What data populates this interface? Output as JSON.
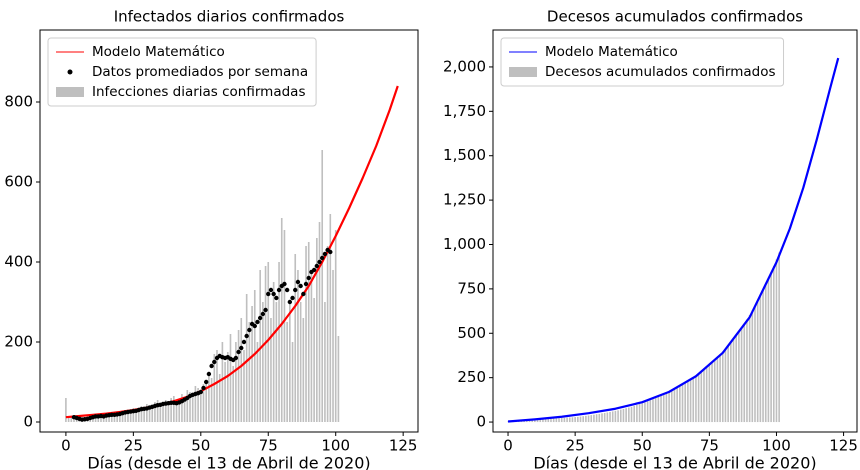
{
  "chart_data": [
    {
      "type": "combo",
      "title": "Infectados diarios confirmados",
      "xlabel": "Días (desde el 13 de Abril de 2020)",
      "xlim": [
        -9.6,
        130.5
      ],
      "ylim": [
        -25,
        980
      ],
      "xticks": [
        0,
        25,
        50,
        75,
        100,
        125
      ],
      "yticks": [
        0,
        200,
        400,
        600,
        800
      ],
      "legend": "upper left",
      "series": [
        {
          "name": "Infecciones diarias confirmadas",
          "color": "#bfbfbf",
          "kind": "bar",
          "x": [
            0,
            1,
            2,
            3,
            4,
            5,
            6,
            7,
            8,
            9,
            10,
            11,
            12,
            13,
            14,
            15,
            16,
            17,
            18,
            19,
            20,
            21,
            22,
            23,
            24,
            25,
            26,
            27,
            28,
            29,
            30,
            31,
            32,
            33,
            34,
            35,
            36,
            37,
            38,
            39,
            40,
            41,
            42,
            43,
            44,
            45,
            46,
            47,
            48,
            49,
            50,
            51,
            52,
            53,
            54,
            55,
            56,
            57,
            58,
            59,
            60,
            61,
            62,
            63,
            64,
            65,
            66,
            67,
            68,
            69,
            70,
            71,
            72,
            73,
            74,
            75,
            76,
            77,
            78,
            79,
            80,
            81,
            82,
            83,
            84,
            85,
            86,
            87,
            88,
            89,
            90,
            91,
            92,
            93,
            94,
            95,
            96,
            97,
            98,
            99,
            100,
            101
          ],
          "values": [
            60,
            10,
            15,
            12,
            5,
            8,
            5,
            10,
            12,
            15,
            20,
            15,
            18,
            10,
            22,
            18,
            20,
            25,
            15,
            22,
            25,
            20,
            30,
            25,
            28,
            35,
            30,
            32,
            40,
            35,
            45,
            40,
            38,
            50,
            55,
            45,
            48,
            55,
            50,
            60,
            65,
            45,
            55,
            70,
            60,
            80,
            75,
            70,
            90,
            85,
            80,
            95,
            100,
            120,
            110,
            170,
            180,
            120,
            200,
            150,
            175,
            220,
            140,
            200,
            230,
            260,
            180,
            320,
            250,
            290,
            330,
            200,
            380,
            300,
            390,
            400,
            260,
            350,
            300,
            400,
            510,
            480,
            250,
            300,
            200,
            420,
            380,
            300,
            260,
            440,
            450,
            380,
            310,
            460,
            500,
            680,
            300,
            440,
            520,
            380,
            480,
            215
          ]
        },
        {
          "name": "Modelo Matemático",
          "color": "#ff0000",
          "kind": "line",
          "x": [
            0,
            5,
            10,
            15,
            20,
            25,
            30,
            35,
            40,
            45,
            50,
            55,
            60,
            65,
            70,
            75,
            80,
            85,
            90,
            95,
            100,
            105,
            110,
            115,
            120,
            123
          ],
          "values": [
            12,
            15,
            18,
            21,
            25,
            30,
            36,
            43,
            52,
            63,
            77,
            95,
            115,
            140,
            170,
            205,
            245,
            290,
            340,
            400,
            465,
            535,
            610,
            690,
            780,
            840
          ]
        },
        {
          "name": "Datos promediados por semana",
          "color": "#000000",
          "kind": "scatter",
          "x": [
            3,
            4,
            5,
            6,
            7,
            8,
            9,
            10,
            11,
            12,
            13,
            14,
            15,
            16,
            17,
            18,
            19,
            20,
            21,
            22,
            23,
            24,
            25,
            26,
            27,
            28,
            29,
            30,
            31,
            32,
            33,
            34,
            35,
            36,
            37,
            38,
            39,
            40,
            41,
            42,
            43,
            44,
            45,
            46,
            47,
            48,
            49,
            50,
            51,
            52,
            53,
            54,
            55,
            56,
            57,
            58,
            59,
            60,
            61,
            62,
            63,
            64,
            65,
            66,
            67,
            68,
            69,
            70,
            71,
            72,
            73,
            74,
            75,
            76,
            77,
            78,
            79,
            80,
            81,
            82,
            83,
            84,
            85,
            86,
            87,
            88,
            89,
            90,
            91,
            92,
            93,
            94,
            95,
            96,
            97,
            98
          ],
          "values": [
            12,
            10,
            8,
            6,
            7,
            8,
            10,
            12,
            14,
            14,
            15,
            14,
            16,
            17,
            18,
            18,
            19,
            20,
            22,
            24,
            25,
            26,
            27,
            28,
            30,
            32,
            33,
            34,
            36,
            38,
            40,
            42,
            43,
            45,
            46,
            47,
            48,
            48,
            47,
            49,
            52,
            56,
            60,
            65,
            68,
            70,
            72,
            75,
            85,
            100,
            120,
            140,
            150,
            160,
            165,
            162,
            160,
            162,
            158,
            155,
            160,
            175,
            185,
            200,
            215,
            230,
            245,
            240,
            250,
            260,
            270,
            280,
            320,
            330,
            320,
            310,
            330,
            340,
            345,
            330,
            300,
            310,
            330,
            350,
            340,
            320,
            345,
            360,
            375,
            380,
            390,
            400,
            410,
            420,
            430,
            425
          ]
        }
      ]
    },
    {
      "type": "combo",
      "title": "Decesos acumulados confirmados",
      "xlabel": "Días (desde el 13 de Abril de 2020)",
      "xlim": [
        -5.6,
        130
      ],
      "ylim": [
        -56,
        2208
      ],
      "xticks": [
        0,
        25,
        50,
        75,
        100,
        125
      ],
      "yticks": [
        0,
        250,
        500,
        750,
        {
          "value": 1000,
          "label": "1,000"
        },
        {
          "value": 1250,
          "label": "1,250"
        },
        {
          "value": 1500,
          "label": "1,500"
        },
        {
          "value": 1750,
          "label": "1,750"
        },
        {
          "value": 2000,
          "label": "2,000"
        }
      ],
      "legend": "upper left",
      "series": [
        {
          "name": "Decesos acumulados confirmados",
          "color": "#bfbfbf",
          "kind": "bar",
          "x": [
            0,
            1,
            2,
            3,
            4,
            5,
            6,
            7,
            8,
            9,
            10,
            11,
            12,
            13,
            14,
            15,
            16,
            17,
            18,
            19,
            20,
            21,
            22,
            23,
            24,
            25,
            26,
            27,
            28,
            29,
            30,
            31,
            32,
            33,
            34,
            35,
            36,
            37,
            38,
            39,
            40,
            41,
            42,
            43,
            44,
            45,
            46,
            47,
            48,
            49,
            50,
            51,
            52,
            53,
            54,
            55,
            56,
            57,
            58,
            59,
            60,
            61,
            62,
            63,
            64,
            65,
            66,
            67,
            68,
            69,
            70,
            71,
            72,
            73,
            74,
            75,
            76,
            77,
            78,
            79,
            80,
            81,
            82,
            83,
            84,
            85,
            86,
            87,
            88,
            89,
            90,
            91,
            92,
            93,
            94,
            95,
            96,
            97,
            98,
            99,
            100,
            101
          ],
          "values": [
            3,
            4,
            5,
            6,
            7,
            8,
            9,
            10,
            11,
            12,
            13,
            14,
            15,
            16,
            17,
            18,
            19,
            20,
            21,
            22,
            23,
            24,
            25,
            26,
            27,
            28,
            29,
            31,
            33,
            35,
            37,
            39,
            41,
            44,
            46,
            49,
            51,
            54,
            57,
            60,
            63,
            66,
            70,
            74,
            78,
            82,
            86,
            91,
            96,
            101,
            106,
            111,
            117,
            123,
            129,
            136,
            142,
            149,
            156,
            163,
            170,
            178,
            186,
            194,
            203,
            212,
            221,
            230,
            240,
            250,
            261,
            272,
            284,
            296,
            309,
            322,
            336,
            350,
            365,
            381,
            397,
            414,
            432,
            450,
            469,
            489,
            510,
            532,
            555,
            578,
            603,
            629,
            656,
            684,
            713,
            743,
            775,
            808,
            843,
            879,
            916,
            955
          ]
        },
        {
          "name": "Modelo Matemático",
          "color": "#0000ff",
          "kind": "line",
          "x": [
            0,
            10,
            20,
            30,
            40,
            50,
            60,
            70,
            80,
            90,
            100,
            105,
            110,
            115,
            120,
            123
          ],
          "values": [
            3,
            15,
            30,
            50,
            75,
            112,
            170,
            258,
            390,
            590,
            900,
            1090,
            1320,
            1590,
            1880,
            2050
          ]
        }
      ]
    }
  ]
}
